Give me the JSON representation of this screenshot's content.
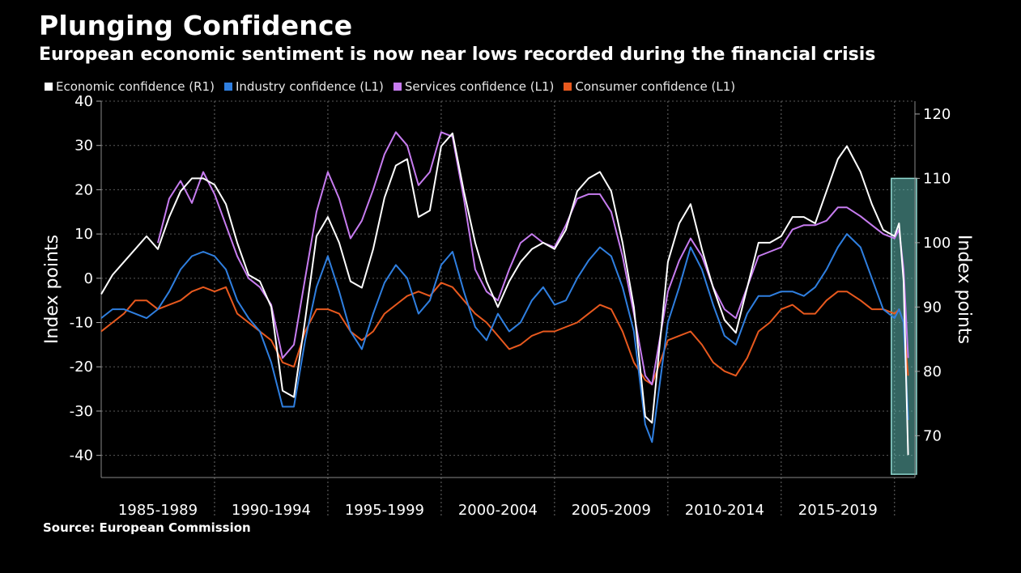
{
  "header": {
    "title": "Plunging Confidence",
    "subtitle": "European economic sentiment is now near lows recorded during the financial crisis"
  },
  "source": "Source: European Commission",
  "colors": {
    "background": "#000000",
    "economic": "#ffffff",
    "industry": "#2f7fe0",
    "services": "#c77cf0",
    "consumer": "#e8591e",
    "highlight": "#5fb8b0"
  },
  "chart_data": {
    "type": "line",
    "ylabel_left": "Index points",
    "ylabel_right": "Index points",
    "ylim_left": [
      -45,
      40
    ],
    "ylim_right": [
      63.5,
      122
    ],
    "yticks_left": [
      "40",
      "30",
      "20",
      "10",
      "0",
      "-10",
      "-20",
      "-30",
      "-40"
    ],
    "yticks_right": [
      "120",
      "110",
      "100",
      "90",
      "80",
      "70"
    ],
    "x_periods": [
      "1985-1989",
      "1990-1994",
      "1995-1999",
      "2000-2004",
      "2005-2009",
      "2010-2014",
      "2015-2019"
    ],
    "xlim": [
      1985.0,
      2020.9
    ],
    "highlight_range": [
      2020.0,
      2020.9
    ],
    "legend_position": "top-left",
    "grid": "horizontal dotted",
    "series": [
      {
        "name": "Economic confidence (R1)",
        "axis": "right",
        "color": "#ffffff",
        "points": [
          [
            1985.0,
            92
          ],
          [
            1985.5,
            95
          ],
          [
            1986.0,
            97
          ],
          [
            1986.5,
            99
          ],
          [
            1987.0,
            101
          ],
          [
            1987.5,
            99
          ],
          [
            1988.0,
            104
          ],
          [
            1988.5,
            108
          ],
          [
            1989.0,
            110
          ],
          [
            1989.5,
            110
          ],
          [
            1990.0,
            109
          ],
          [
            1990.5,
            106
          ],
          [
            1991.0,
            100
          ],
          [
            1991.5,
            95
          ],
          [
            1992.0,
            94
          ],
          [
            1992.5,
            90
          ],
          [
            1993.0,
            77
          ],
          [
            1993.5,
            76
          ],
          [
            1994.0,
            88
          ],
          [
            1994.5,
            101
          ],
          [
            1995.0,
            104
          ],
          [
            1995.5,
            100
          ],
          [
            1996.0,
            94
          ],
          [
            1996.5,
            93
          ],
          [
            1997.0,
            99
          ],
          [
            1997.5,
            107
          ],
          [
            1998.0,
            112
          ],
          [
            1998.5,
            113
          ],
          [
            1999.0,
            104
          ],
          [
            1999.5,
            105
          ],
          [
            2000.0,
            115
          ],
          [
            2000.5,
            117
          ],
          [
            2001.0,
            108
          ],
          [
            2001.5,
            100
          ],
          [
            2002.0,
            94
          ],
          [
            2002.5,
            90
          ],
          [
            2003.0,
            94
          ],
          [
            2003.5,
            97
          ],
          [
            2004.0,
            99
          ],
          [
            2004.5,
            100
          ],
          [
            2005.0,
            99
          ],
          [
            2005.5,
            102
          ],
          [
            2006.0,
            108
          ],
          [
            2006.5,
            110
          ],
          [
            2007.0,
            111
          ],
          [
            2007.5,
            108
          ],
          [
            2008.0,
            100
          ],
          [
            2008.5,
            90
          ],
          [
            2009.0,
            73
          ],
          [
            2009.3,
            72
          ],
          [
            2010.0,
            97
          ],
          [
            2010.5,
            103
          ],
          [
            2011.0,
            106
          ],
          [
            2011.5,
            99
          ],
          [
            2012.0,
            93
          ],
          [
            2012.5,
            88
          ],
          [
            2013.0,
            86
          ],
          [
            2013.5,
            93
          ],
          [
            2014.0,
            100
          ],
          [
            2014.5,
            100
          ],
          [
            2015.0,
            101
          ],
          [
            2015.5,
            104
          ],
          [
            2016.0,
            104
          ],
          [
            2016.5,
            103
          ],
          [
            2017.0,
            108
          ],
          [
            2017.5,
            113
          ],
          [
            2017.9,
            115
          ],
          [
            2018.5,
            111
          ],
          [
            2019.0,
            106
          ],
          [
            2019.5,
            102
          ],
          [
            2020.0,
            101
          ],
          [
            2020.2,
            103
          ],
          [
            2020.4,
            94
          ],
          [
            2020.6,
            67
          ]
        ]
      },
      {
        "name": "Industry confidence (L1)",
        "axis": "left",
        "color": "#2f7fe0",
        "points": [
          [
            1985.0,
            -9
          ],
          [
            1985.5,
            -7
          ],
          [
            1986.0,
            -7
          ],
          [
            1986.5,
            -8
          ],
          [
            1987.0,
            -9
          ],
          [
            1987.5,
            -7
          ],
          [
            1988.0,
            -3
          ],
          [
            1988.5,
            2
          ],
          [
            1989.0,
            5
          ],
          [
            1989.5,
            6
          ],
          [
            1990.0,
            5
          ],
          [
            1990.5,
            2
          ],
          [
            1991.0,
            -5
          ],
          [
            1991.5,
            -9
          ],
          [
            1992.0,
            -12
          ],
          [
            1992.5,
            -19
          ],
          [
            1993.0,
            -29
          ],
          [
            1993.5,
            -29
          ],
          [
            1994.0,
            -14
          ],
          [
            1994.5,
            -2
          ],
          [
            1995.0,
            5
          ],
          [
            1995.5,
            -3
          ],
          [
            1996.0,
            -12
          ],
          [
            1996.5,
            -16
          ],
          [
            1997.0,
            -8
          ],
          [
            1997.5,
            -1
          ],
          [
            1998.0,
            3
          ],
          [
            1998.5,
            0
          ],
          [
            1999.0,
            -8
          ],
          [
            1999.5,
            -5
          ],
          [
            2000.0,
            3
          ],
          [
            2000.5,
            6
          ],
          [
            2001.0,
            -3
          ],
          [
            2001.5,
            -11
          ],
          [
            2002.0,
            -14
          ],
          [
            2002.5,
            -8
          ],
          [
            2003.0,
            -12
          ],
          [
            2003.5,
            -10
          ],
          [
            2004.0,
            -5
          ],
          [
            2004.5,
            -2
          ],
          [
            2005.0,
            -6
          ],
          [
            2005.5,
            -5
          ],
          [
            2006.0,
            0
          ],
          [
            2006.5,
            4
          ],
          [
            2007.0,
            7
          ],
          [
            2007.5,
            5
          ],
          [
            2008.0,
            -2
          ],
          [
            2008.5,
            -12
          ],
          [
            2009.0,
            -33
          ],
          [
            2009.3,
            -37
          ],
          [
            2010.0,
            -10
          ],
          [
            2010.5,
            -2
          ],
          [
            2011.0,
            7
          ],
          [
            2011.5,
            2
          ],
          [
            2012.0,
            -6
          ],
          [
            2012.5,
            -13
          ],
          [
            2013.0,
            -15
          ],
          [
            2013.5,
            -8
          ],
          [
            2014.0,
            -4
          ],
          [
            2014.5,
            -4
          ],
          [
            2015.0,
            -3
          ],
          [
            2015.5,
            -3
          ],
          [
            2016.0,
            -4
          ],
          [
            2016.5,
            -2
          ],
          [
            2017.0,
            2
          ],
          [
            2017.5,
            7
          ],
          [
            2017.9,
            10
          ],
          [
            2018.5,
            7
          ],
          [
            2019.0,
            0
          ],
          [
            2019.5,
            -7
          ],
          [
            2020.0,
            -9
          ],
          [
            2020.2,
            -7
          ],
          [
            2020.4,
            -10
          ],
          [
            2020.6,
            -32
          ]
        ]
      },
      {
        "name": "Services confidence  (L1)",
        "axis": "left",
        "color": "#c77cf0",
        "points": [
          [
            1987.5,
            8
          ],
          [
            1988.0,
            18
          ],
          [
            1988.5,
            22
          ],
          [
            1989.0,
            17
          ],
          [
            1989.5,
            24
          ],
          [
            1990.0,
            19
          ],
          [
            1990.5,
            12
          ],
          [
            1991.0,
            5
          ],
          [
            1991.5,
            0
          ],
          [
            1992.0,
            -2
          ],
          [
            1992.5,
            -6
          ],
          [
            1993.0,
            -18
          ],
          [
            1993.5,
            -15
          ],
          [
            1994.0,
            0
          ],
          [
            1994.5,
            15
          ],
          [
            1995.0,
            24
          ],
          [
            1995.5,
            18
          ],
          [
            1996.0,
            9
          ],
          [
            1996.5,
            13
          ],
          [
            1997.0,
            20
          ],
          [
            1997.5,
            28
          ],
          [
            1998.0,
            33
          ],
          [
            1998.5,
            30
          ],
          [
            1999.0,
            21
          ],
          [
            1999.5,
            24
          ],
          [
            2000.0,
            33
          ],
          [
            2000.5,
            32
          ],
          [
            2001.0,
            18
          ],
          [
            2001.5,
            2
          ],
          [
            2002.0,
            -3
          ],
          [
            2002.5,
            -5
          ],
          [
            2003.0,
            2
          ],
          [
            2003.5,
            8
          ],
          [
            2004.0,
            10
          ],
          [
            2004.5,
            8
          ],
          [
            2005.0,
            7
          ],
          [
            2005.5,
            12
          ],
          [
            2006.0,
            18
          ],
          [
            2006.5,
            19
          ],
          [
            2007.0,
            19
          ],
          [
            2007.5,
            15
          ],
          [
            2008.0,
            5
          ],
          [
            2008.5,
            -8
          ],
          [
            2009.0,
            -22
          ],
          [
            2009.3,
            -24
          ],
          [
            2010.0,
            -3
          ],
          [
            2010.5,
            4
          ],
          [
            2011.0,
            9
          ],
          [
            2011.5,
            5
          ],
          [
            2012.0,
            -2
          ],
          [
            2012.5,
            -7
          ],
          [
            2013.0,
            -9
          ],
          [
            2013.5,
            -2
          ],
          [
            2014.0,
            5
          ],
          [
            2014.5,
            6
          ],
          [
            2015.0,
            7
          ],
          [
            2015.5,
            11
          ],
          [
            2016.0,
            12
          ],
          [
            2016.5,
            12
          ],
          [
            2017.0,
            13
          ],
          [
            2017.5,
            16
          ],
          [
            2017.9,
            16
          ],
          [
            2018.5,
            14
          ],
          [
            2019.0,
            12
          ],
          [
            2019.5,
            10
          ],
          [
            2020.0,
            9
          ],
          [
            2020.2,
            11
          ],
          [
            2020.4,
            2
          ],
          [
            2020.6,
            -18
          ]
        ]
      },
      {
        "name": "Consumer confidence  (L1)",
        "axis": "left",
        "color": "#e8591e",
        "points": [
          [
            1985.0,
            -12
          ],
          [
            1985.5,
            -10
          ],
          [
            1986.0,
            -8
          ],
          [
            1986.5,
            -5
          ],
          [
            1987.0,
            -5
          ],
          [
            1987.5,
            -7
          ],
          [
            1988.0,
            -6
          ],
          [
            1988.5,
            -5
          ],
          [
            1989.0,
            -3
          ],
          [
            1989.5,
            -2
          ],
          [
            1990.0,
            -3
          ],
          [
            1990.5,
            -2
          ],
          [
            1991.0,
            -8
          ],
          [
            1991.5,
            -10
          ],
          [
            1992.0,
            -12
          ],
          [
            1992.5,
            -14
          ],
          [
            1993.0,
            -19
          ],
          [
            1993.5,
            -20
          ],
          [
            1994.0,
            -12
          ],
          [
            1994.5,
            -7
          ],
          [
            1995.0,
            -7
          ],
          [
            1995.5,
            -8
          ],
          [
            1996.0,
            -12
          ],
          [
            1996.5,
            -14
          ],
          [
            1997.0,
            -12
          ],
          [
            1997.5,
            -8
          ],
          [
            1998.0,
            -6
          ],
          [
            1998.5,
            -4
          ],
          [
            1999.0,
            -3
          ],
          [
            1999.5,
            -4
          ],
          [
            2000.0,
            -1
          ],
          [
            2000.5,
            -2
          ],
          [
            2001.0,
            -5
          ],
          [
            2001.5,
            -8
          ],
          [
            2002.0,
            -10
          ],
          [
            2002.5,
            -13
          ],
          [
            2003.0,
            -16
          ],
          [
            2003.5,
            -15
          ],
          [
            2004.0,
            -13
          ],
          [
            2004.5,
            -12
          ],
          [
            2005.0,
            -12
          ],
          [
            2005.5,
            -11
          ],
          [
            2006.0,
            -10
          ],
          [
            2006.5,
            -8
          ],
          [
            2007.0,
            -6
          ],
          [
            2007.5,
            -7
          ],
          [
            2008.0,
            -12
          ],
          [
            2008.5,
            -19
          ],
          [
            2009.0,
            -23
          ],
          [
            2009.3,
            -24
          ],
          [
            2010.0,
            -14
          ],
          [
            2010.5,
            -13
          ],
          [
            2011.0,
            -12
          ],
          [
            2011.5,
            -15
          ],
          [
            2012.0,
            -19
          ],
          [
            2012.5,
            -21
          ],
          [
            2013.0,
            -22
          ],
          [
            2013.5,
            -18
          ],
          [
            2014.0,
            -12
          ],
          [
            2014.5,
            -10
          ],
          [
            2015.0,
            -7
          ],
          [
            2015.5,
            -6
          ],
          [
            2016.0,
            -8
          ],
          [
            2016.5,
            -8
          ],
          [
            2017.0,
            -5
          ],
          [
            2017.5,
            -3
          ],
          [
            2017.9,
            -3
          ],
          [
            2018.5,
            -5
          ],
          [
            2019.0,
            -7
          ],
          [
            2019.5,
            -7
          ],
          [
            2020.0,
            -8
          ],
          [
            2020.2,
            -7
          ],
          [
            2020.4,
            -10
          ],
          [
            2020.6,
            -22
          ]
        ]
      }
    ]
  }
}
